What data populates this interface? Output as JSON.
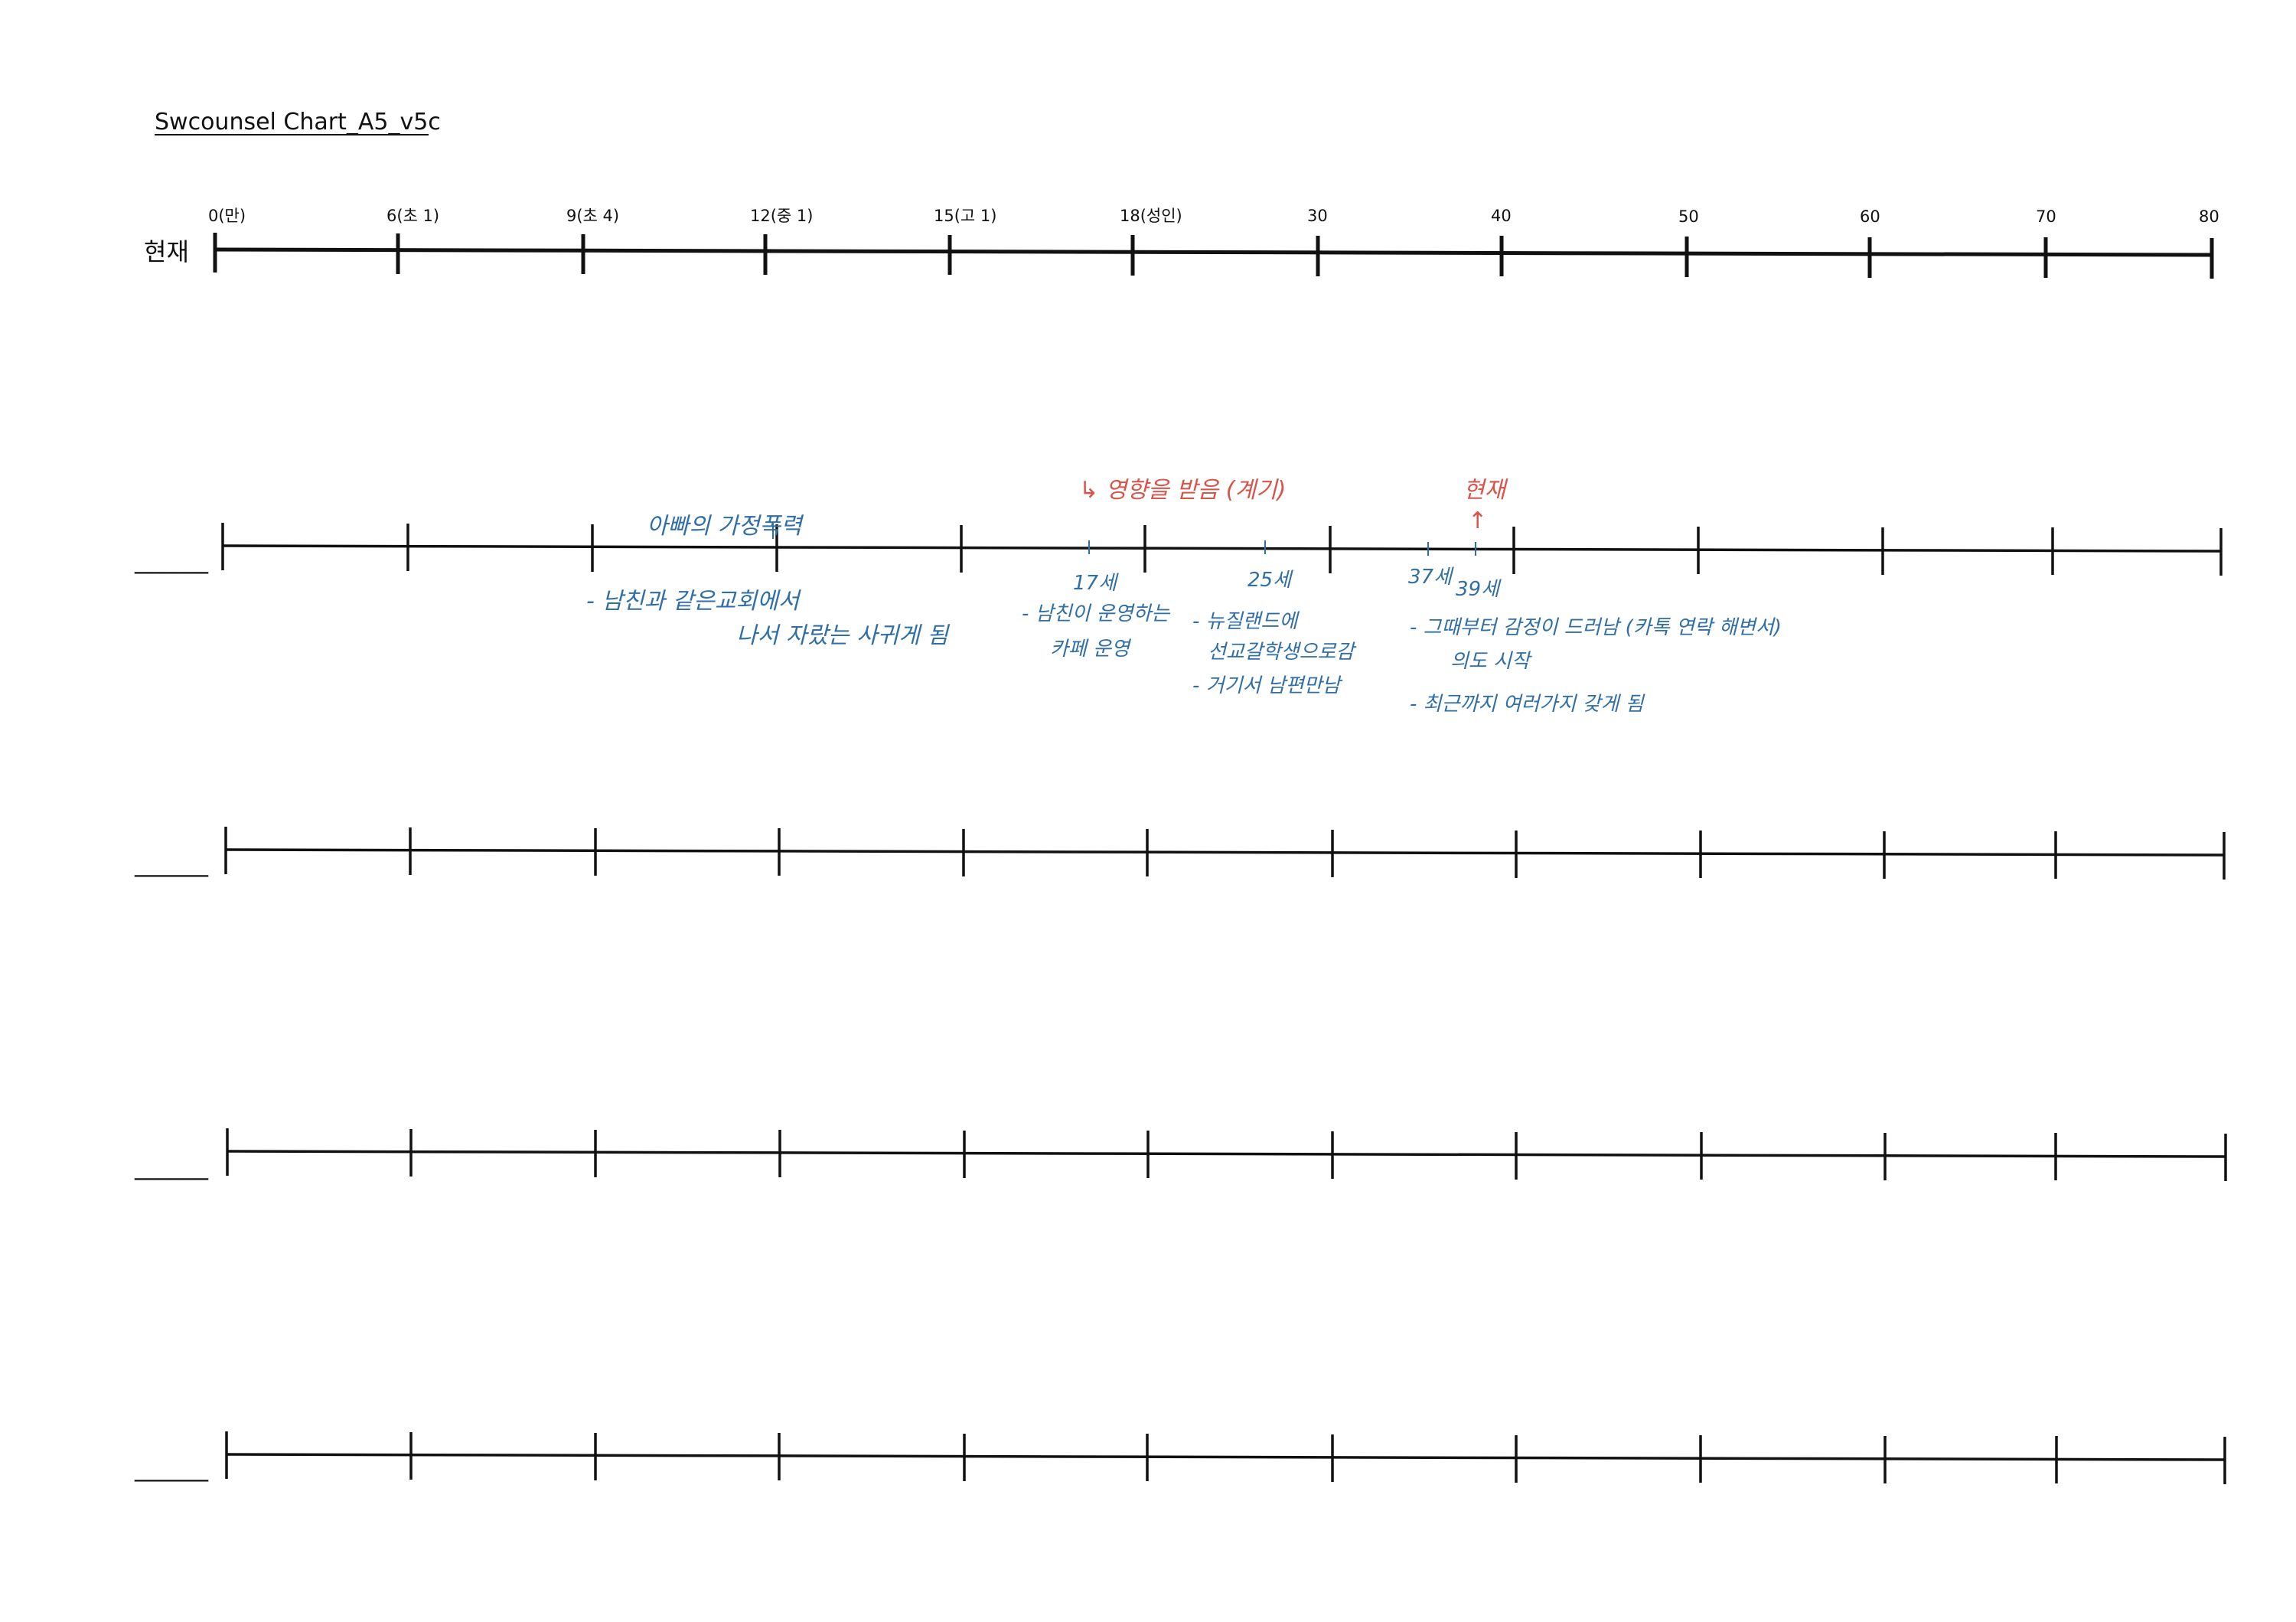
{
  "title": "Swcounsel Chart_A5_v5c",
  "header_timeline": {
    "row_label": "현재",
    "ticks": [
      "0(만)",
      "6(초 1)",
      "9(초 4)",
      "12(중 1)",
      "15(고 1)",
      "18(성인)",
      "30",
      "40",
      "50",
      "60",
      "70",
      "80"
    ]
  },
  "blank_label": "______",
  "annotations": {
    "note_a": "아빠의 가정폭력",
    "note_b1": "- 남친과 같은교회에서",
    "note_b2": "나서 자랐는 사귀게 됨",
    "note_c": "↳ 영향을 받음 (계기)",
    "note_d": "현재",
    "age_17": "17세",
    "age_25": "25세",
    "age_37": "37세",
    "age_39": "39세",
    "note_e1": "- 남친이 운영하는",
    "note_e2": "카페 운영",
    "note_f1": "- 뉴질랜드에",
    "note_f2": "선교갈학생으로감",
    "note_f3": "- 거기서 남편만남",
    "note_g1": "- 그때부터 감정이 드러남 (카톡 연락 해변서)",
    "note_g2": "의도 시작",
    "note_g3": "- 최근까지 여러가지 갖게 됨"
  },
  "colors": {
    "ink": "#111111",
    "blue_ink": "#2f6ea6",
    "red_ink": "#d9534a"
  }
}
